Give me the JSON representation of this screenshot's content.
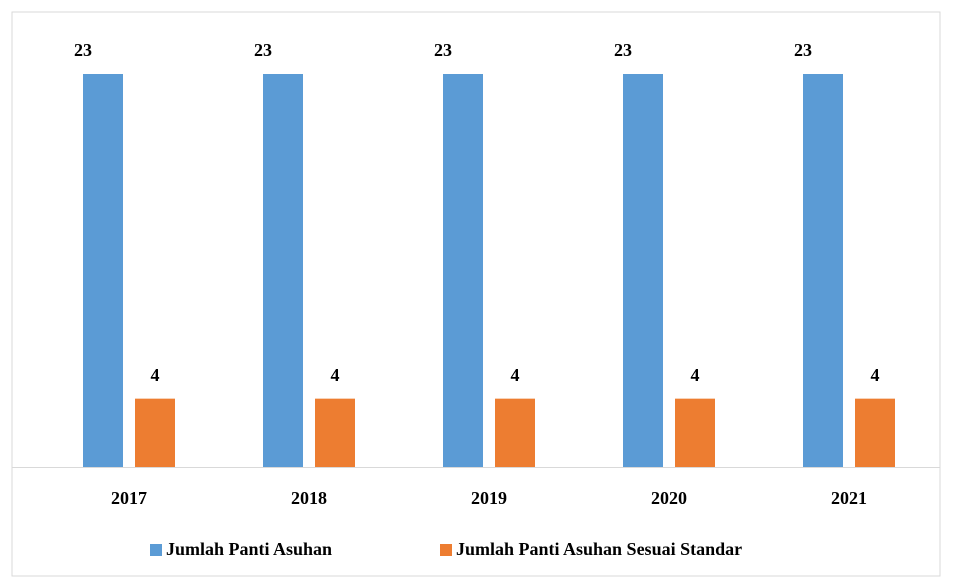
{
  "chart_data": {
    "type": "bar",
    "categories": [
      "2017",
      "2018",
      "2019",
      "2020",
      "2021"
    ],
    "series": [
      {
        "name": "Jumlah Panti Asuhan",
        "color": "#5b9bd5",
        "values": [
          23,
          23,
          23,
          23,
          23
        ]
      },
      {
        "name": "Jumlah Panti Asuhan Sesuai Standar",
        "color": "#ed7d31",
        "values": [
          4,
          4,
          4,
          4,
          4
        ]
      }
    ],
    "legend": "bottom"
  }
}
